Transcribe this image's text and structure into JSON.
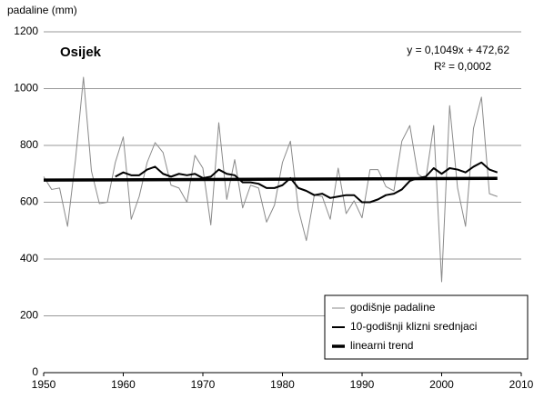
{
  "chart_data": {
    "type": "line",
    "y_label": "padaline (mm)",
    "annotations": [
      "Osijek",
      "y = 0,1049x + 472,62",
      "R² = 0,0002"
    ],
    "x": [
      1950,
      1951,
      1952,
      1953,
      1954,
      1955,
      1956,
      1957,
      1958,
      1959,
      1960,
      1961,
      1962,
      1963,
      1964,
      1965,
      1966,
      1967,
      1968,
      1969,
      1970,
      1971,
      1972,
      1973,
      1974,
      1975,
      1976,
      1977,
      1978,
      1979,
      1980,
      1981,
      1982,
      1983,
      1984,
      1985,
      1986,
      1987,
      1988,
      1989,
      1990,
      1991,
      1992,
      1993,
      1994,
      1995,
      1996,
      1997,
      1998,
      1999,
      2000,
      2001,
      2002,
      2003,
      2004,
      2005,
      2006,
      2007
    ],
    "series": [
      {
        "name": "godišnje padaline",
        "color": "#8a8a8a",
        "width": 1,
        "values": [
          690,
          645,
          650,
          515,
          750,
          1040,
          710,
          595,
          600,
          740,
          830,
          540,
          620,
          740,
          810,
          775,
          660,
          650,
          600,
          765,
          720,
          520,
          880,
          610,
          750,
          580,
          660,
          650,
          530,
          590,
          740,
          815,
          575,
          465,
          625,
          620,
          540,
          720,
          560,
          605,
          545,
          715,
          715,
          655,
          640,
          815,
          870,
          700,
          680,
          870,
          320,
          940,
          650,
          515,
          860,
          970,
          630,
          620
        ]
      },
      {
        "name": "10-godišnji klizni srednjaci",
        "color": "#000000",
        "width": 2,
        "values": [
          null,
          null,
          null,
          null,
          null,
          null,
          null,
          null,
          null,
          690,
          705,
          695,
          695,
          715,
          725,
          700,
          690,
          700,
          695,
          700,
          685,
          690,
          715,
          700,
          695,
          670,
          670,
          665,
          650,
          650,
          660,
          685,
          650,
          640,
          625,
          630,
          615,
          620,
          625,
          625,
          600,
          600,
          610,
          625,
          630,
          645,
          675,
          685,
          690,
          720,
          700,
          720,
          715,
          705,
          725,
          740,
          715,
          705
        ]
      },
      {
        "name": "linearni trend",
        "color": "#000000",
        "width": 3.5,
        "x": [
          1950,
          2007
        ],
        "values": [
          678,
          684
        ]
      }
    ],
    "xlim": [
      1950,
      2010
    ],
    "xticks": [
      1950,
      1960,
      1970,
      1980,
      1990,
      2000,
      2010
    ],
    "ylim": [
      0,
      1200
    ],
    "yticks": [
      0,
      200,
      400,
      600,
      800,
      1000,
      1200
    ],
    "grid": true,
    "legend": "lower right"
  }
}
